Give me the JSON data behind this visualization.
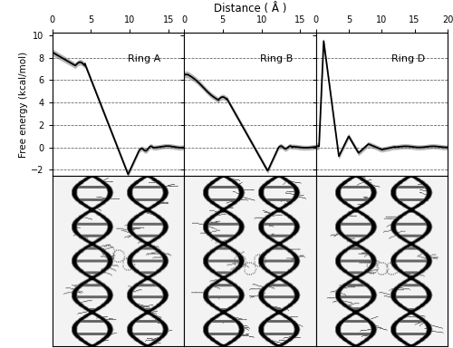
{
  "title_x": "Distance ( Å )",
  "ylabel": "Free energy (kcal/mol)",
  "ylim": [
    -2.5,
    10.2
  ],
  "yticks": [
    -2,
    0,
    2,
    4,
    6,
    8,
    10
  ],
  "xlim_A": [
    0,
    17
  ],
  "xlim_B": [
    0,
    17
  ],
  "xlim_D": [
    0,
    20
  ],
  "xticks_A": [
    0,
    5,
    10,
    15
  ],
  "xticks_B": [
    0,
    5,
    10,
    15
  ],
  "xticks_D": [
    0,
    5,
    10,
    15,
    20
  ],
  "ring_labels": [
    "Ring A",
    "Ring B",
    "Ring D"
  ],
  "dashed_y": [
    -2,
    0,
    2,
    4,
    6,
    8
  ],
  "label_fontsize": 7.5,
  "tick_fontsize": 7,
  "title_fontsize": 8.5,
  "ring_label_fontsize": 8,
  "err_scale": 0.22
}
